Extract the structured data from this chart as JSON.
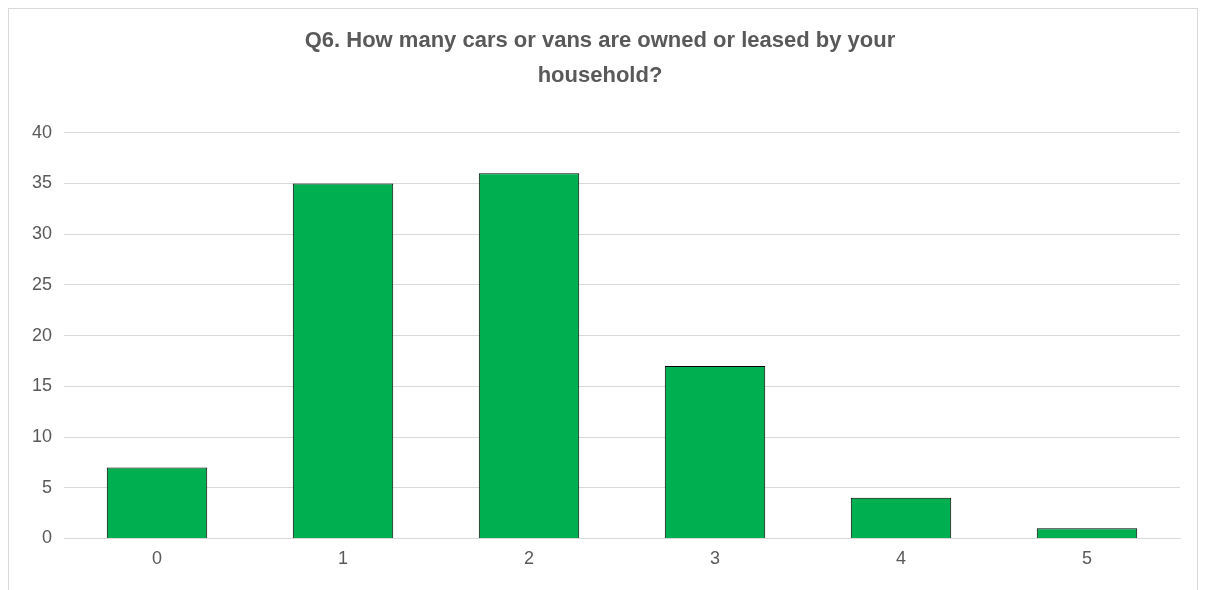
{
  "chart_data": {
    "type": "bar",
    "title": "Q6. How many cars or vans are owned or leased by your household?",
    "categories": [
      "0",
      "1",
      "2",
      "3",
      "4",
      "5"
    ],
    "values": [
      7,
      35,
      36,
      17,
      4,
      1
    ],
    "color": "#00b050",
    "ylim": [
      0,
      40
    ],
    "yticks": [
      0,
      5,
      10,
      15,
      20,
      25,
      30,
      35,
      40
    ],
    "grid": "y",
    "legend": false
  }
}
